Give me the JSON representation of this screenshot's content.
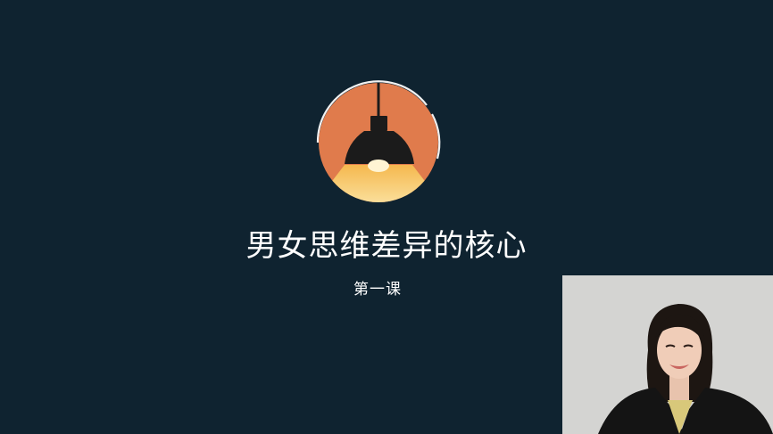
{
  "slide": {
    "title": "男女思维差异的核心",
    "subtitle": "第一课",
    "colors": {
      "background": "#0f2330",
      "lamp_circle": "#e07b4c",
      "light_beam": "#f7c45a",
      "lamp_shade": "#1c1c1c",
      "text": "#ffffff"
    },
    "icon": "pendant-lamp-icon"
  },
  "webcam": {
    "description_icon": "presenter-video-feed"
  }
}
